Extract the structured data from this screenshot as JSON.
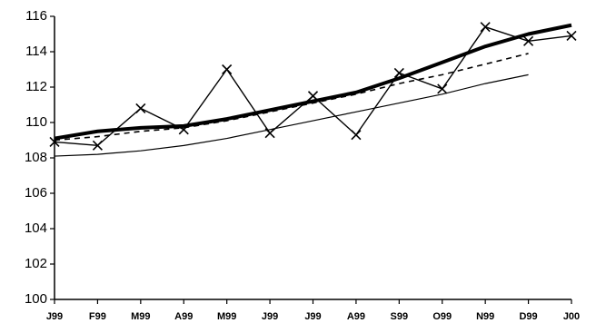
{
  "chart_data": {
    "type": "line",
    "categories": [
      "J99",
      "F99",
      "M99",
      "A99",
      "M99",
      "J99",
      "J99",
      "A99",
      "S99",
      "O99",
      "N99",
      "D99",
      "J00"
    ],
    "series": [
      {
        "color": "#000000",
        "width": 1.4,
        "marker": "x",
        "values": [
          108.9,
          108.7,
          110.8,
          109.6,
          113.0,
          109.4,
          111.5,
          109.3,
          112.8,
          111.9,
          115.4,
          114.6,
          114.9
        ]
      },
      {
        "color": "#000000",
        "width": 4,
        "values": [
          109.1,
          109.5,
          109.7,
          109.8,
          110.2,
          110.7,
          111.2,
          111.7,
          112.5,
          113.4,
          114.3,
          115.0,
          115.5
        ]
      },
      {
        "color": "#000000",
        "width": 1.6,
        "dashed": true,
        "values": [
          109.0,
          109.2,
          109.5,
          109.7,
          110.1,
          110.6,
          111.1,
          111.6,
          112.2,
          112.7,
          113.3,
          113.9,
          null
        ]
      },
      {
        "color": "#000000",
        "width": 1.2,
        "values": [
          108.1,
          108.2,
          108.4,
          108.7,
          109.1,
          109.6,
          110.1,
          110.6,
          111.1,
          111.6,
          112.2,
          112.7,
          null
        ]
      }
    ],
    "ylim": [
      100,
      116
    ],
    "yticks": [
      100,
      102,
      104,
      106,
      108,
      110,
      112,
      114,
      116
    ],
    "grid": false
  }
}
